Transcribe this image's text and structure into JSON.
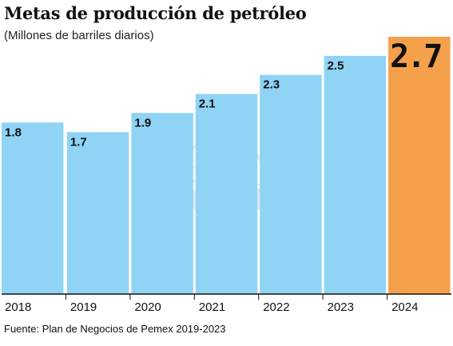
{
  "chart_data": {
    "type": "bar",
    "title": "Metas de producción de petróleo",
    "subtitle": "(Millones de barriles diarios)",
    "categories": [
      "2018",
      "2019",
      "2020",
      "2021",
      "2022",
      "2023",
      "2024"
    ],
    "values": [
      1.8,
      1.7,
      1.9,
      2.1,
      2.3,
      2.5,
      2.7
    ],
    "value_labels": [
      "1.8",
      "1.7",
      "1.9",
      "2.1",
      "2.3",
      "2.5",
      "2.7"
    ],
    "highlight_index": 6,
    "ylim": [
      0,
      2.7
    ],
    "grid": false,
    "legend": "none"
  },
  "source": "Fuente: Plan de Negocios de Pemex 2019-2023",
  "colors": {
    "bar": "#8fd3f5",
    "bar_highlight": "#f5a04a",
    "axis": "#111111",
    "watermark": "#c9d8e0"
  },
  "watermark_icon": "eagle-emblem-icon"
}
